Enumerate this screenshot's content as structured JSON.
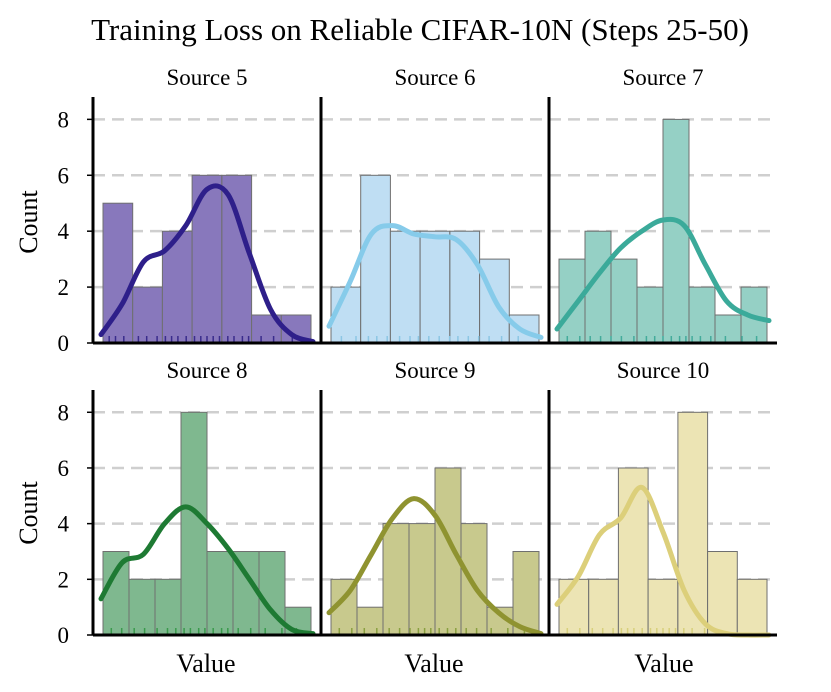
{
  "chart_data": {
    "type": "histogram",
    "title": "Training Loss on Reliable CIFAR-10N (Steps 25-50)",
    "xlabel": "Value",
    "ylabel": "Count",
    "ylim": [
      0,
      8.8
    ],
    "yticks": [
      0,
      2,
      4,
      6,
      8
    ],
    "grid": true,
    "panels": [
      {
        "name": "Source 5",
        "color": "#8878BC",
        "line_color": "#2E1F8A",
        "counts": [
          5,
          2,
          4,
          6,
          6,
          1,
          1
        ],
        "kde": [
          0.3,
          1.4,
          2.9,
          3.3,
          4.2,
          5.5,
          5.3,
          3.2,
          1.2,
          0.3,
          0.05
        ],
        "rug_color": "#3a2c8c",
        "rug": [
          0.03,
          0.06,
          0.1,
          0.17,
          0.21,
          0.26,
          0.3,
          0.33,
          0.36,
          0.4,
          0.44,
          0.47,
          0.5,
          0.53,
          0.56,
          0.6,
          0.63,
          0.67,
          0.7,
          0.76,
          0.82,
          0.91
        ]
      },
      {
        "name": "Source 6",
        "color": "#BFDEF3",
        "line_color": "#86CBEA",
        "counts": [
          2,
          6,
          4,
          4,
          4,
          3,
          1
        ],
        "kde": [
          0.6,
          2.2,
          3.9,
          4.2,
          3.9,
          3.8,
          3.7,
          2.8,
          1.3,
          0.5,
          0.2
        ],
        "rug_color": "#8cc6e4",
        "rug": [
          0.05,
          0.12,
          0.18,
          0.22,
          0.27,
          0.33,
          0.38,
          0.42,
          0.47,
          0.52,
          0.57,
          0.61,
          0.66,
          0.71,
          0.76,
          0.82,
          0.9
        ]
      },
      {
        "name": "Source 7",
        "color": "#95D0C5",
        "line_color": "#3BAA9A",
        "counts": [
          3,
          4,
          3,
          2,
          8,
          2,
          1,
          2
        ],
        "kde": [
          0.5,
          1.5,
          2.5,
          3.4,
          4.0,
          4.4,
          4.2,
          2.8,
          1.5,
          1.0,
          0.8
        ],
        "rug_color": "#43ab9b",
        "rug": [
          0.04,
          0.1,
          0.15,
          0.2,
          0.25,
          0.3,
          0.36,
          0.42,
          0.46,
          0.5,
          0.54,
          0.58,
          0.61,
          0.64,
          0.68,
          0.73,
          0.8,
          0.88,
          0.95
        ]
      },
      {
        "name": "Source 8",
        "color": "#7FB88F",
        "line_color": "#1E7A33",
        "counts": [
          3,
          2,
          2,
          8,
          3,
          3,
          3,
          1
        ],
        "kde": [
          1.3,
          2.6,
          2.9,
          4.0,
          4.6,
          4.0,
          3.1,
          2.0,
          0.9,
          0.2,
          0.05
        ],
        "rug_color": "#3a9a4c",
        "rug": [
          0.04,
          0.09,
          0.15,
          0.2,
          0.26,
          0.31,
          0.35,
          0.39,
          0.42,
          0.46,
          0.49,
          0.53,
          0.57,
          0.6,
          0.65,
          0.71,
          0.78,
          0.86,
          0.93
        ]
      },
      {
        "name": "Source 9",
        "color": "#C8C98D",
        "line_color": "#8F9330",
        "counts": [
          2,
          1,
          4,
          4,
          6,
          4,
          1,
          3
        ],
        "kde": [
          0.8,
          1.6,
          2.9,
          4.2,
          4.9,
          4.3,
          2.9,
          1.6,
          0.8,
          0.3,
          0.05
        ],
        "rug_color": "#8aa040",
        "rug": [
          0.04,
          0.1,
          0.16,
          0.22,
          0.28,
          0.33,
          0.38,
          0.42,
          0.45,
          0.48,
          0.52,
          0.56,
          0.6,
          0.65,
          0.7,
          0.77,
          0.85,
          0.93
        ]
      },
      {
        "name": "Source 10",
        "color": "#ECE4B4",
        "line_color": "#DCCF7A",
        "counts": [
          2,
          2,
          6,
          2,
          8,
          3,
          2
        ],
        "kde": [
          1.1,
          2.1,
          3.6,
          4.2,
          5.3,
          3.7,
          1.6,
          0.4,
          0.05,
          0.0,
          0.0
        ],
        "rug_color": "#d8d07c",
        "rug": [
          0.04,
          0.1,
          0.16,
          0.21,
          0.26,
          0.3,
          0.33,
          0.36,
          0.4,
          0.44,
          0.47,
          0.5,
          0.53,
          0.56,
          0.6,
          0.64,
          0.7
        ]
      }
    ]
  }
}
